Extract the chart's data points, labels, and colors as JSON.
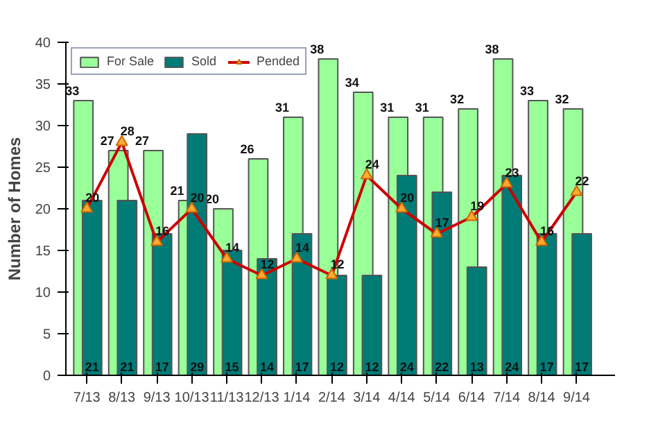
{
  "chart_data": {
    "type": "bar",
    "ylabel": "Number of Homes",
    "categories": [
      "7/13",
      "8/13",
      "9/13",
      "10/13",
      "11/13",
      "12/13",
      "1/14",
      "2/14",
      "3/14",
      "4/14",
      "5/14",
      "6/14",
      "7/14",
      "8/14",
      "9/14"
    ],
    "series": [
      {
        "name": "For Sale",
        "color": "#99ff99",
        "values": [
          33,
          27,
          27,
          21,
          20,
          26,
          31,
          38,
          34,
          31,
          31,
          32,
          38,
          33,
          32
        ]
      },
      {
        "name": "Sold",
        "color": "#007b76",
        "values": [
          21,
          21,
          17,
          29,
          15,
          14,
          17,
          12,
          12,
          24,
          22,
          13,
          24,
          17,
          17
        ]
      },
      {
        "name": "Pended",
        "type": "line",
        "color": "#cc0000",
        "marker": "triangle",
        "values": [
          20,
          28,
          16,
          20,
          14,
          12,
          14,
          12,
          24,
          20,
          17,
          19,
          23,
          16,
          22
        ]
      }
    ],
    "ylim": [
      0,
      40
    ],
    "yticks": [
      0,
      5,
      10,
      15,
      20,
      25,
      30,
      35,
      40
    ],
    "legend": "top",
    "data_labels": true
  }
}
